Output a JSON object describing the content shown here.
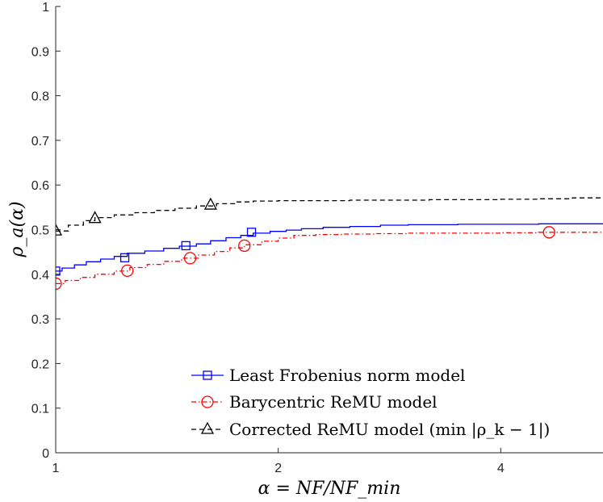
{
  "chart_data": {
    "type": "line",
    "xscale": "log2",
    "xlim": [
      1,
      5.5
    ],
    "ylim": [
      0,
      1
    ],
    "xticks": [
      1,
      2,
      4
    ],
    "xtick_labels": [
      "1",
      "2",
      "4"
    ],
    "yticks": [
      0,
      0.1,
      0.2,
      0.3,
      0.4,
      0.5,
      0.6,
      0.7,
      0.8,
      0.9,
      1
    ],
    "ytick_labels": [
      "0",
      "0.1",
      "0.2",
      "0.3",
      "0.4",
      "0.5",
      "0.6",
      "0.7",
      "0.8",
      "0.9",
      "1"
    ],
    "xlabel": "α = NF/NF_min",
    "ylabel": "ρ_a(α)",
    "legend_position": "bottom-right",
    "series": [
      {
        "name": "Least Frobenius norm model",
        "color": "#0000ff",
        "dash": "solid",
        "marker": "square",
        "x": [
          1.0,
          1.02,
          1.06,
          1.1,
          1.15,
          1.2,
          1.25,
          1.32,
          1.4,
          1.47,
          1.55,
          1.62,
          1.7,
          1.78,
          1.85,
          1.95,
          2.05,
          2.15,
          2.3,
          2.5,
          2.75,
          3.0,
          3.5,
          4.0,
          4.5,
          5.0,
          5.5
        ],
        "y": [
          0.407,
          0.414,
          0.421,
          0.428,
          0.434,
          0.44,
          0.447,
          0.452,
          0.458,
          0.463,
          0.468,
          0.475,
          0.482,
          0.487,
          0.492,
          0.496,
          0.499,
          0.502,
          0.505,
          0.507,
          0.51,
          0.511,
          0.512,
          0.512,
          0.513,
          0.513,
          0.514
        ],
        "marker_x": [
          1.0,
          1.24,
          1.5,
          1.84
        ],
        "marker_y": [
          0.407,
          0.437,
          0.464,
          0.494
        ]
      },
      {
        "name": "Barycentric ReMU model",
        "color": "#ff0000",
        "dash": "dashdot",
        "marker": "circle",
        "x": [
          1.0,
          1.03,
          1.08,
          1.13,
          1.2,
          1.26,
          1.33,
          1.4,
          1.48,
          1.56,
          1.64,
          1.72,
          1.8,
          1.9,
          2.0,
          2.1,
          2.25,
          2.45,
          2.7,
          3.0,
          3.5,
          4.0,
          4.5,
          5.0,
          5.5
        ],
        "y": [
          0.379,
          0.386,
          0.393,
          0.4,
          0.407,
          0.415,
          0.422,
          0.429,
          0.436,
          0.443,
          0.451,
          0.459,
          0.466,
          0.474,
          0.481,
          0.487,
          0.489,
          0.49,
          0.491,
          0.492,
          0.492,
          0.493,
          0.494,
          0.494,
          0.495
        ],
        "marker_x": [
          1.0,
          1.25,
          1.52,
          1.8,
          4.65
        ],
        "marker_y": [
          0.379,
          0.408,
          0.436,
          0.464,
          0.494
        ]
      },
      {
        "name": "Corrected ReMU model (min |ρ_k − 1|)",
        "color": "#000000",
        "dash": "dashed",
        "marker": "triangle",
        "x": [
          1.0,
          1.04,
          1.09,
          1.13,
          1.2,
          1.28,
          1.36,
          1.45,
          1.55,
          1.65,
          1.75,
          1.85,
          2.0,
          2.2,
          2.5,
          2.8,
          3.2,
          3.6,
          4.0,
          4.5,
          5.0,
          5.5
        ],
        "y": [
          0.497,
          0.51,
          0.52,
          0.527,
          0.533,
          0.538,
          0.543,
          0.548,
          0.553,
          0.558,
          0.562,
          0.564,
          0.565,
          0.565,
          0.566,
          0.566,
          0.567,
          0.567,
          0.568,
          0.569,
          0.571,
          0.573
        ],
        "marker_x": [
          1.0,
          1.13,
          1.62
        ],
        "marker_y": [
          0.497,
          0.525,
          0.555
        ]
      }
    ]
  },
  "legend": {
    "items": [
      {
        "label": "Least Frobenius norm model"
      },
      {
        "label": "Barycentric ReMU model"
      },
      {
        "label": "Corrected ReMU model (min |ρ_k − 1|)"
      }
    ]
  }
}
